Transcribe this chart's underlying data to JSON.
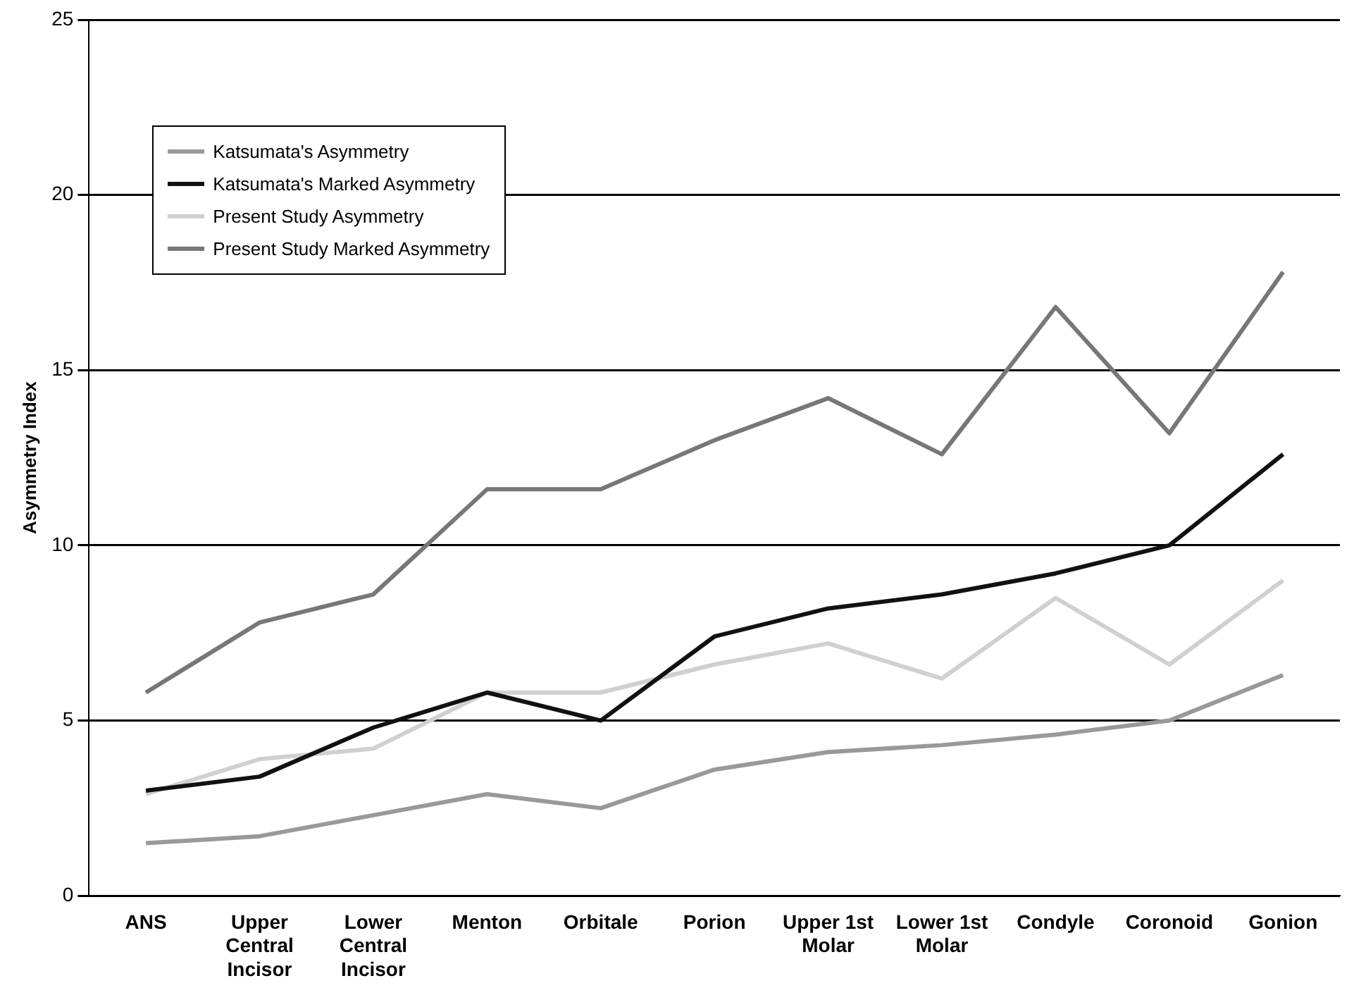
{
  "chart_data": {
    "type": "line",
    "ylabel": "Asymmetry Index",
    "categories": [
      "ANS",
      "Upper Central Incisor",
      "Lower Central Incisor",
      "Menton",
      "Orbitale",
      "Porion",
      "Upper 1st Molar",
      "Lower 1st Molar",
      "Condyle",
      "Coronoid",
      "Gonion"
    ],
    "series": [
      {
        "name": "Katsumata's Asymmetry",
        "color": "#999999",
        "values": [
          1.5,
          1.7,
          2.3,
          2.9,
          2.5,
          3.6,
          4.1,
          4.3,
          4.6,
          5.0,
          6.3
        ]
      },
      {
        "name": "Katsumata's Marked Asymmetry",
        "color": "#111111",
        "values": [
          3.0,
          3.4,
          4.8,
          5.8,
          5.0,
          7.4,
          8.2,
          8.6,
          9.2,
          10.0,
          12.6
        ]
      },
      {
        "name": "Present Study Asymmetry",
        "color": "#d0d0d0",
        "values": [
          2.9,
          3.9,
          4.2,
          5.8,
          5.8,
          6.6,
          7.2,
          6.2,
          8.5,
          6.6,
          9.0
        ]
      },
      {
        "name": "Present Study Marked Asymmetry",
        "color": "#777777",
        "values": [
          5.8,
          7.8,
          8.6,
          11.6,
          11.6,
          13.0,
          14.2,
          12.6,
          16.8,
          13.2,
          17.8
        ]
      }
    ],
    "ylim": [
      0,
      25
    ],
    "yticks": [
      0,
      5,
      10,
      15,
      20,
      25
    ],
    "grid": "y",
    "legend": "top left",
    "marker": "none",
    "line_style": "solid"
  }
}
